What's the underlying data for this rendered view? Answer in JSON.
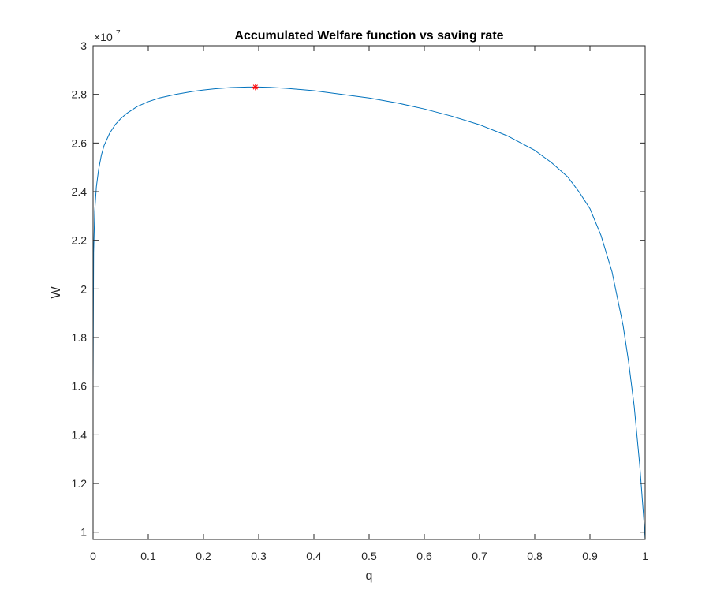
{
  "chart_data": {
    "type": "line",
    "title": "Accumulated Welfare function vs saving rate",
    "xlabel": "q",
    "ylabel": "W",
    "y_exponent_base": "×10",
    "y_exponent_power": "7",
    "xlim": [
      0,
      1
    ],
    "ylim": [
      0.97,
      3.0
    ],
    "x_ticks": [
      0,
      0.1,
      0.2,
      0.3,
      0.4,
      0.5,
      0.6,
      0.7,
      0.8,
      0.9,
      1
    ],
    "x_tick_labels": [
      "0",
      "0.1",
      "0.2",
      "0.3",
      "0.4",
      "0.5",
      "0.6",
      "0.7",
      "0.8",
      "0.9",
      "1"
    ],
    "y_ticks": [
      1,
      1.2,
      1.4,
      1.6,
      1.8,
      2,
      2.2,
      2.4,
      2.6,
      2.8,
      3
    ],
    "y_tick_labels": [
      "1",
      "1.2",
      "1.4",
      "1.6",
      "1.8",
      "2",
      "2.2",
      "2.4",
      "2.6",
      "2.8",
      "3"
    ],
    "grid": false,
    "box": true,
    "series": [
      {
        "line_color": "#0072BD",
        "x": [
          0,
          0.001,
          0.003,
          0.006,
          0.01,
          0.015,
          0.02,
          0.03,
          0.04,
          0.05,
          0.06,
          0.08,
          0.1,
          0.12,
          0.15,
          0.18,
          0.2,
          0.22,
          0.25,
          0.28,
          0.3,
          0.32,
          0.35,
          0.4,
          0.45,
          0.5,
          0.55,
          0.6,
          0.65,
          0.7,
          0.75,
          0.8,
          0.83,
          0.86,
          0.88,
          0.9,
          0.92,
          0.94,
          0.96,
          0.97,
          0.98,
          0.99,
          0.995,
          0.998,
          1.0
        ],
        "y": [
          1.6,
          2.15,
          2.32,
          2.42,
          2.49,
          2.55,
          2.59,
          2.64,
          2.675,
          2.7,
          2.72,
          2.75,
          2.77,
          2.785,
          2.8,
          2.812,
          2.818,
          2.823,
          2.828,
          2.83,
          2.83,
          2.829,
          2.825,
          2.815,
          2.8,
          2.785,
          2.765,
          2.74,
          2.71,
          2.675,
          2.63,
          2.57,
          2.52,
          2.46,
          2.4,
          2.33,
          2.22,
          2.07,
          1.85,
          1.7,
          1.52,
          1.28,
          1.13,
          1.04,
          0.97
        ]
      }
    ],
    "marker": {
      "x": 0.294,
      "y": 2.83,
      "symbol": "*",
      "color": "#FF0000"
    }
  }
}
